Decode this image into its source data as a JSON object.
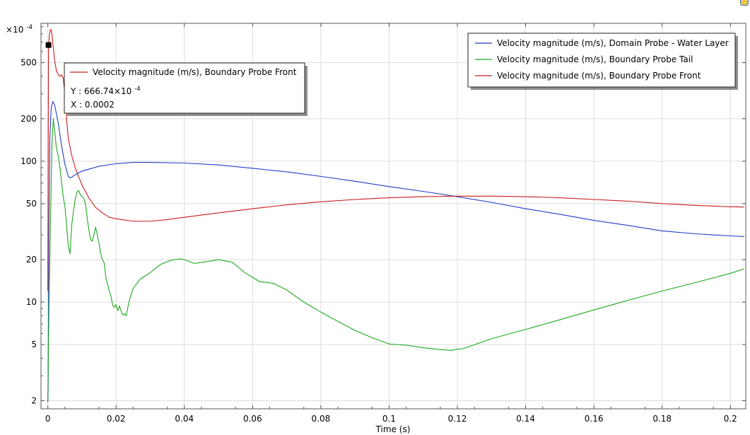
{
  "chart_data": {
    "type": "line",
    "title": "",
    "xlabel": "Time (s)",
    "ylabel": "",
    "y_scale": "log",
    "y_multiplier_label": "×10",
    "y_multiplier_exp": "-4",
    "xlim": [
      -0.002,
      0.2045
    ],
    "ylim": [
      1.75,
      950
    ],
    "x_ticks": [
      0,
      0.02,
      0.04,
      0.06,
      0.08,
      0.1,
      0.12,
      0.14,
      0.16,
      0.18,
      0.2
    ],
    "x_tick_labels": [
      "0",
      "0.02",
      "0.04",
      "0.06",
      "0.08",
      "0.1",
      "0.12",
      "0.14",
      "0.16",
      "0.18",
      "0.2"
    ],
    "y_ticks": [
      2,
      5,
      10,
      20,
      50,
      100,
      200,
      500
    ],
    "y_tick_labels": [
      "2",
      "5",
      "10",
      "20",
      "50",
      "100",
      "200",
      "500"
    ],
    "grid": true,
    "legend_position": "top-right",
    "series": [
      {
        "name": "Velocity magnitude (m/s), Domain Probe - Water Layer",
        "color": "#1f3ec8",
        "x": [
          0,
          0.0001,
          0.0003,
          0.0006,
          0.001,
          0.0015,
          0.002,
          0.003,
          0.004,
          0.005,
          0.006,
          0.0065,
          0.007,
          0.008,
          0.01,
          0.015,
          0.02,
          0.025,
          0.03,
          0.04,
          0.05,
          0.06,
          0.07,
          0.08,
          0.09,
          0.1,
          0.11,
          0.12,
          0.13,
          0.14,
          0.15,
          0.16,
          0.17,
          0.18,
          0.19,
          0.2,
          0.204
        ],
        "y": [
          1.95,
          2.5,
          30,
          150,
          240,
          265,
          250,
          190,
          130,
          95,
          78,
          76,
          77,
          80,
          85,
          92,
          96,
          98,
          98,
          97,
          94,
          89,
          84,
          78,
          72,
          66,
          61,
          56,
          51,
          46,
          42,
          38,
          35,
          32,
          30.5,
          29.5,
          29.2
        ]
      },
      {
        "name": "Velocity magnitude (m/s), Boundary Probe Tail",
        "color": "#1fa81f",
        "x": [
          0,
          0.0003,
          0.0008,
          0.0012,
          0.0016,
          0.002,
          0.0025,
          0.003,
          0.0035,
          0.004,
          0.0045,
          0.005,
          0.0055,
          0.006,
          0.0065,
          0.007,
          0.0075,
          0.008,
          0.0085,
          0.009,
          0.0095,
          0.01,
          0.0105,
          0.011,
          0.0115,
          0.012,
          0.0125,
          0.013,
          0.0135,
          0.014,
          0.0145,
          0.015,
          0.0155,
          0.016,
          0.0165,
          0.017,
          0.0175,
          0.018,
          0.0185,
          0.019,
          0.0195,
          0.02,
          0.0205,
          0.021,
          0.0215,
          0.022,
          0.0225,
          0.023,
          0.0235,
          0.024,
          0.025,
          0.027,
          0.03,
          0.033,
          0.036,
          0.039,
          0.04,
          0.043,
          0.046,
          0.05,
          0.054,
          0.058,
          0.062,
          0.066,
          0.07,
          0.075,
          0.08,
          0.085,
          0.09,
          0.095,
          0.1,
          0.105,
          0.11,
          0.115,
          0.118,
          0.122,
          0.13,
          0.14,
          0.15,
          0.16,
          0.17,
          0.18,
          0.19,
          0.2,
          0.204
        ],
        "y": [
          2,
          8,
          40,
          130,
          200,
          165,
          125,
          110,
          92,
          72,
          56,
          48,
          35,
          25,
          22,
          35,
          44,
          53,
          60,
          62,
          58,
          56,
          55,
          50,
          40,
          33,
          28,
          27,
          30,
          34,
          30,
          26,
          22,
          20,
          19,
          15,
          13.5,
          12,
          11,
          9.5,
          9.2,
          9.6,
          8.7,
          9.4,
          8.6,
          8.1,
          8.3,
          8.0,
          9.3,
          10.5,
          12.5,
          14.5,
          16.2,
          18.5,
          19.8,
          20.3,
          20.0,
          18.8,
          19.3,
          20.0,
          19.2,
          16.0,
          14.0,
          13.6,
          12.2,
          10.0,
          8.5,
          7.3,
          6.3,
          5.6,
          5.05,
          4.95,
          4.75,
          4.6,
          4.55,
          4.7,
          5.5,
          6.4,
          7.5,
          8.8,
          10.3,
          12.0,
          13.8,
          16.0,
          17.2
        ]
      },
      {
        "name": "Velocity magnitude (m/s), Boundary Probe Front",
        "color": "#c81e1e",
        "x": [
          0,
          0.0002,
          0.0005,
          0.0008,
          0.001,
          0.0013,
          0.0016,
          0.002,
          0.0025,
          0.003,
          0.0035,
          0.004,
          0.0045,
          0.005,
          0.0055,
          0.006,
          0.007,
          0.008,
          0.009,
          0.01,
          0.012,
          0.014,
          0.016,
          0.018,
          0.02,
          0.025,
          0.03,
          0.035,
          0.04,
          0.05,
          0.06,
          0.07,
          0.08,
          0.09,
          0.1,
          0.11,
          0.12,
          0.13,
          0.14,
          0.15,
          0.16,
          0.17,
          0.18,
          0.19,
          0.2,
          0.204
        ],
        "y": [
          12,
          666.74,
          800,
          860,
          850,
          760,
          640,
          520,
          440,
          415,
          400,
          410,
          390,
          300,
          200,
          145,
          110,
          90,
          78,
          68,
          55,
          47,
          43,
          40,
          39,
          37.5,
          37.5,
          38.5,
          40,
          43,
          46,
          49,
          51.5,
          53.5,
          55,
          56,
          56.5,
          56.5,
          56,
          55,
          53.5,
          52,
          50,
          48.5,
          47.5,
          47.3
        ]
      }
    ],
    "tooltip": {
      "series_name": "Velocity magnitude (m/s), Boundary Probe Front",
      "y_label": "Y : 666.74×10",
      "y_exp": "-4",
      "x_label": "X : 0.0002",
      "point": {
        "x": 0.0002,
        "y": 666.74
      }
    }
  }
}
